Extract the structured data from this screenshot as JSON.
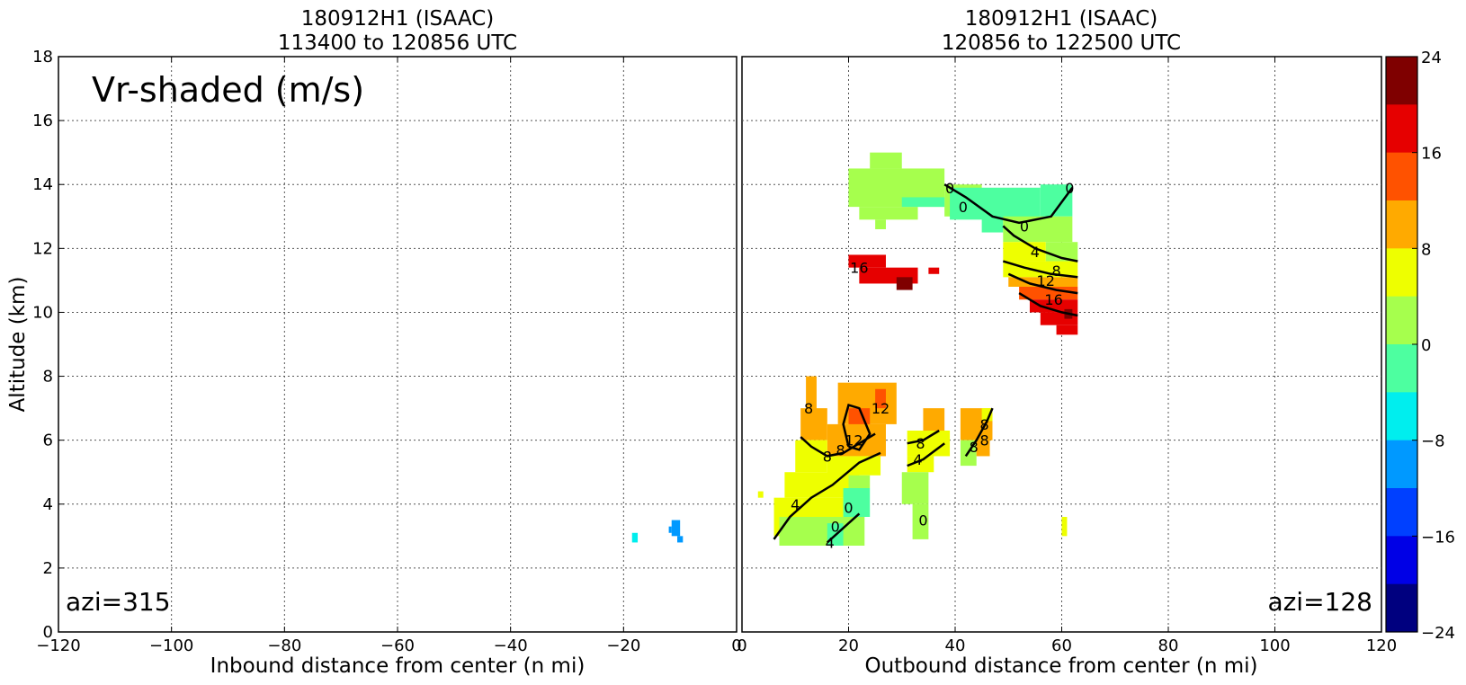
{
  "chart_data": [
    {
      "type": "heatmap",
      "title_line1": "180912H1 (ISAAC)",
      "title_line2": "113400 to 120856 UTC",
      "xlabel": "Inbound distance from center (n mi)",
      "ylabel": "Altitude (km)",
      "xlim": [
        -120,
        0
      ],
      "ylim": [
        0,
        18
      ],
      "xticks": [
        "−120",
        "−100",
        "−80",
        "−60",
        "−40",
        "−20",
        "0"
      ],
      "yticks": [
        "0",
        "2",
        "4",
        "6",
        "8",
        "10",
        "12",
        "14",
        "16",
        "18"
      ],
      "grid": true,
      "annotation": "Vr-shaded (m/s)",
      "azimuth_label": "azi=315",
      "cells": [
        {
          "x0": -18.5,
          "x1": -17.5,
          "y0": 2.8,
          "y1": 3.1,
          "v": -6
        },
        {
          "x0": -11.5,
          "x1": -10,
          "y0": 3.0,
          "y1": 3.5,
          "v": -10
        },
        {
          "x0": -12.0,
          "x1": -11.5,
          "y0": 3.1,
          "y1": 3.3,
          "v": -10
        },
        {
          "x0": -10.5,
          "x1": -9.5,
          "y0": 2.8,
          "y1": 3.0,
          "v": -10
        }
      ],
      "contours": []
    },
    {
      "type": "heatmap",
      "title_line1": "180912H1 (ISAAC)",
      "title_line2": "120856 to 122500 UTC",
      "xlabel": "Outbound distance from center (n mi)",
      "ylabel": "",
      "xlim": [
        0,
        120
      ],
      "ylim": [
        0,
        18
      ],
      "xticks": [
        "0",
        "20",
        "40",
        "60",
        "80",
        "100",
        "120"
      ],
      "yticks": [],
      "grid": true,
      "azimuth_label": "azi=128",
      "cells": [
        {
          "x0": 20,
          "x1": 38,
          "y0": 13.3,
          "y1": 14.5,
          "v": 2
        },
        {
          "x0": 22,
          "x1": 33,
          "y0": 12.9,
          "y1": 13.3,
          "v": 2
        },
        {
          "x0": 24,
          "x1": 30,
          "y0": 14.5,
          "y1": 15.0,
          "v": 2
        },
        {
          "x0": 25,
          "x1": 27,
          "y0": 12.6,
          "y1": 12.9,
          "v": 2
        },
        {
          "x0": 38,
          "x1": 45,
          "y0": 13.0,
          "y1": 14.0,
          "v": 2
        },
        {
          "x0": 30,
          "x1": 38,
          "y0": 13.3,
          "y1": 13.6,
          "v": -2
        },
        {
          "x0": 39,
          "x1": 56,
          "y0": 12.9,
          "y1": 13.9,
          "v": -2
        },
        {
          "x0": 56,
          "x1": 62,
          "y0": 13.0,
          "y1": 14.0,
          "v": -2
        },
        {
          "x0": 45,
          "x1": 49,
          "y0": 12.5,
          "y1": 13.0,
          "v": -2
        },
        {
          "x0": 49,
          "x1": 62,
          "y0": 12.2,
          "y1": 13.0,
          "v": 2
        },
        {
          "x0": 57,
          "x1": 63,
          "y0": 11.6,
          "y1": 12.2,
          "v": 2
        },
        {
          "x0": 49,
          "x1": 57,
          "y0": 11.6,
          "y1": 12.2,
          "v": 6
        },
        {
          "x0": 49,
          "x1": 63,
          "y0": 11.1,
          "y1": 11.6,
          "v": 6
        },
        {
          "x0": 50,
          "x1": 63,
          "y0": 10.8,
          "y1": 11.1,
          "v": 10
        },
        {
          "x0": 52,
          "x1": 63,
          "y0": 10.4,
          "y1": 10.8,
          "v": 14
        },
        {
          "x0": 54,
          "x1": 63,
          "y0": 10.0,
          "y1": 10.4,
          "v": 18
        },
        {
          "x0": 56,
          "x1": 63,
          "y0": 9.6,
          "y1": 10.0,
          "v": 18
        },
        {
          "x0": 59,
          "x1": 63,
          "y0": 9.3,
          "y1": 9.6,
          "v": 18
        },
        {
          "x0": 60.5,
          "x1": 62,
          "y0": 9.8,
          "y1": 10.1,
          "v": 22
        },
        {
          "x0": 20,
          "x1": 27,
          "y0": 11.4,
          "y1": 11.8,
          "v": 18
        },
        {
          "x0": 22,
          "x1": 33,
          "y0": 10.9,
          "y1": 11.4,
          "v": 18
        },
        {
          "x0": 29,
          "x1": 32,
          "y0": 10.7,
          "y1": 11.1,
          "v": 22
        },
        {
          "x0": 35,
          "x1": 37,
          "y0": 11.2,
          "y1": 11.4,
          "v": 18
        },
        {
          "x0": 12,
          "x1": 14,
          "y0": 6.8,
          "y1": 8.0,
          "v": 10
        },
        {
          "x0": 11,
          "x1": 16,
          "y0": 6.0,
          "y1": 7.0,
          "v": 10
        },
        {
          "x0": 18,
          "x1": 29,
          "y0": 6.5,
          "y1": 7.8,
          "v": 10
        },
        {
          "x0": 20,
          "x1": 24,
          "y0": 6.0,
          "y1": 7.0,
          "v": 14
        },
        {
          "x0": 25,
          "x1": 27,
          "y0": 7.0,
          "y1": 7.6,
          "v": 14
        },
        {
          "x0": 16,
          "x1": 27,
          "y0": 5.5,
          "y1": 6.5,
          "v": 10
        },
        {
          "x0": 10,
          "x1": 16,
          "y0": 5.0,
          "y1": 6.0,
          "v": 6
        },
        {
          "x0": 16,
          "x1": 26,
          "y0": 4.9,
          "y1": 5.5,
          "v": 6
        },
        {
          "x0": 8,
          "x1": 22,
          "y0": 4.2,
          "y1": 5.0,
          "v": 6
        },
        {
          "x0": 6,
          "x1": 19,
          "y0": 3.0,
          "y1": 4.2,
          "v": 6
        },
        {
          "x0": 19,
          "x1": 24,
          "y0": 3.6,
          "y1": 4.5,
          "v": -2
        },
        {
          "x0": 7,
          "x1": 23,
          "y0": 2.7,
          "y1": 3.6,
          "v": 2
        },
        {
          "x0": 16,
          "x1": 19,
          "y0": 2.7,
          "y1": 3.4,
          "v": -2
        },
        {
          "x0": 20,
          "x1": 24,
          "y0": 4.5,
          "y1": 4.9,
          "v": 2
        },
        {
          "x0": 3,
          "x1": 4,
          "y0": 4.2,
          "y1": 4.4,
          "v": 6
        },
        {
          "x0": 34,
          "x1": 38,
          "y0": 6.0,
          "y1": 7.0,
          "v": 10
        },
        {
          "x0": 31,
          "x1": 39,
          "y0": 5.5,
          "y1": 6.3,
          "v": 6
        },
        {
          "x0": 31,
          "x1": 36,
          "y0": 5.0,
          "y1": 5.5,
          "v": 6
        },
        {
          "x0": 30,
          "x1": 35,
          "y0": 4.0,
          "y1": 5.0,
          "v": 2
        },
        {
          "x0": 32,
          "x1": 35,
          "y0": 2.9,
          "y1": 4.0,
          "v": 2
        },
        {
          "x0": 41,
          "x1": 47,
          "y0": 6.0,
          "y1": 7.0,
          "v": 10
        },
        {
          "x0": 41,
          "x1": 44,
          "y0": 5.2,
          "y1": 6.0,
          "v": 2
        },
        {
          "x0": 44,
          "x1": 46.5,
          "y0": 5.5,
          "y1": 6.2,
          "v": 10
        },
        {
          "x0": 45,
          "x1": 47,
          "y0": 6.6,
          "y1": 7.0,
          "v": 6
        },
        {
          "x0": 60,
          "x1": 61,
          "y0": 3.0,
          "y1": 3.6,
          "v": 6
        }
      ],
      "contours": [
        {
          "level": "0",
          "points": [
            [
              38,
              14.0
            ],
            [
              42,
              13.6
            ],
            [
              47,
              13.0
            ],
            [
              52,
              12.8
            ],
            [
              58,
              13.0
            ],
            [
              62,
              13.9
            ]
          ]
        },
        {
          "level": "4",
          "points": [
            [
              49,
              12.7
            ],
            [
              51,
              12.4
            ],
            [
              55,
              12.0
            ],
            [
              60,
              11.7
            ],
            [
              63,
              11.6
            ]
          ]
        },
        {
          "level": "8",
          "points": [
            [
              49,
              11.6
            ],
            [
              53,
              11.4
            ],
            [
              58,
              11.2
            ],
            [
              63,
              11.1
            ]
          ]
        },
        {
          "level": "12",
          "points": [
            [
              50,
              11.2
            ],
            [
              54,
              10.9
            ],
            [
              59,
              10.7
            ],
            [
              63,
              10.6
            ]
          ]
        },
        {
          "level": "16",
          "points": [
            [
              52,
              10.6
            ],
            [
              56,
              10.2
            ],
            [
              60,
              10.0
            ],
            [
              63,
              9.9
            ]
          ]
        },
        {
          "level": "4",
          "points": [
            [
              6,
              2.9
            ],
            [
              9,
              3.6
            ],
            [
              13,
              4.2
            ],
            [
              17,
              4.6
            ],
            [
              22,
              5.3
            ],
            [
              26,
              5.6
            ]
          ]
        },
        {
          "level": "8",
          "points": [
            [
              11,
              6.1
            ],
            [
              13,
              5.8
            ],
            [
              16,
              5.5
            ],
            [
              19,
              5.6
            ],
            [
              22,
              5.9
            ],
            [
              25,
              6.2
            ]
          ]
        },
        {
          "level": "12",
          "points": [
            [
              20,
              5.8
            ],
            [
              19,
              6.5
            ],
            [
              20,
              7.1
            ],
            [
              22,
              7.0
            ],
            [
              24,
              6.2
            ],
            [
              22,
              5.7
            ],
            [
              20,
              5.8
            ]
          ]
        },
        {
          "level": "4",
          "points": [
            [
              16,
              2.8
            ],
            [
              18,
              3.1
            ],
            [
              20,
              3.4
            ],
            [
              22,
              3.7
            ]
          ]
        },
        {
          "level": "8",
          "points": [
            [
              31,
              5.9
            ],
            [
              34,
              6.0
            ],
            [
              37,
              6.3
            ]
          ]
        },
        {
          "level": "4",
          "points": [
            [
              31,
              5.2
            ],
            [
              34,
              5.4
            ],
            [
              38,
              5.9
            ]
          ]
        },
        {
          "level": "8",
          "points": [
            [
              42,
              5.5
            ],
            [
              44,
              6.0
            ],
            [
              46,
              6.6
            ],
            [
              47,
              7.0
            ]
          ]
        }
      ],
      "contour_labels": [
        {
          "text": "0",
          "x": 39,
          "y": 13.9
        },
        {
          "text": "0",
          "x": 41.5,
          "y": 13.3
        },
        {
          "text": "0",
          "x": 53,
          "y": 12.7
        },
        {
          "text": "0",
          "x": 61.5,
          "y": 13.9
        },
        {
          "text": "4",
          "x": 55,
          "y": 11.9
        },
        {
          "text": "8",
          "x": 59,
          "y": 11.3
        },
        {
          "text": "12",
          "x": 57,
          "y": 11.0
        },
        {
          "text": "16",
          "x": 58.5,
          "y": 10.4
        },
        {
          "text": "16",
          "x": 22,
          "y": 11.4
        },
        {
          "text": "8",
          "x": 12.5,
          "y": 7.0
        },
        {
          "text": "12",
          "x": 26,
          "y": 7.0
        },
        {
          "text": "12",
          "x": 21,
          "y": 6.0
        },
        {
          "text": "8",
          "x": 16,
          "y": 5.5
        },
        {
          "text": "8",
          "x": 18.5,
          "y": 5.7
        },
        {
          "text": "4",
          "x": 10,
          "y": 4.0
        },
        {
          "text": "0",
          "x": 20,
          "y": 3.9
        },
        {
          "text": "0",
          "x": 17.5,
          "y": 3.3
        },
        {
          "text": "4",
          "x": 16.5,
          "y": 2.8
        },
        {
          "text": "8",
          "x": 33.5,
          "y": 5.9
        },
        {
          "text": "4",
          "x": 33,
          "y": 5.4
        },
        {
          "text": "0",
          "x": 34,
          "y": 3.5
        },
        {
          "text": "8",
          "x": 45.5,
          "y": 6.5
        },
        {
          "text": "8",
          "x": 43.5,
          "y": 5.8
        },
        {
          "text": "8",
          "x": 45.5,
          "y": 6.0
        }
      ]
    }
  ],
  "colorbar": {
    "ticks": [
      "24",
      "16",
      "8",
      "0",
      "−8",
      "−16",
      "−24"
    ],
    "colors": [
      "#7f0000",
      "#e60000",
      "#ff5200",
      "#ffaa00",
      "#eeff00",
      "#a6ff4d",
      "#4dffa0",
      "#00eeee",
      "#0099ff",
      "#0040ff",
      "#0000e6",
      "#00007f"
    ]
  },
  "colors": {
    "bins": [
      {
        "min": 20,
        "color": "#7f0000"
      },
      {
        "min": 16,
        "color": "#e60000"
      },
      {
        "min": 12,
        "color": "#ff5200"
      },
      {
        "min": 8,
        "color": "#ffaa00"
      },
      {
        "min": 4,
        "color": "#eeff00"
      },
      {
        "min": 0,
        "color": "#a6ff4d"
      },
      {
        "min": -4,
        "color": "#4dffa0"
      },
      {
        "min": -8,
        "color": "#00eeee"
      },
      {
        "min": -12,
        "color": "#0099ff"
      },
      {
        "min": -16,
        "color": "#0040ff"
      },
      {
        "min": -20,
        "color": "#0000e6"
      },
      {
        "min": -99,
        "color": "#00007f"
      }
    ]
  }
}
